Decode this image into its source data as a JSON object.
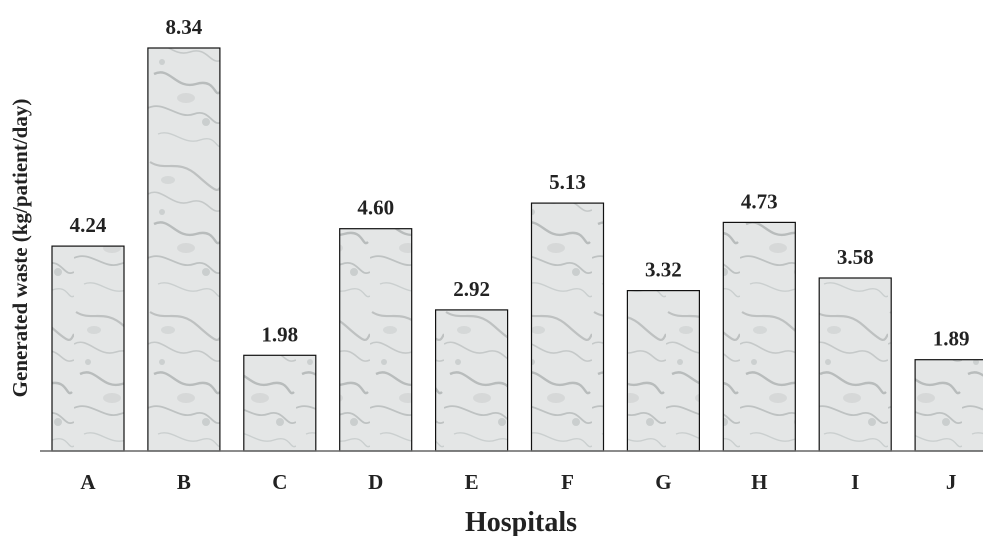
{
  "chart_data": {
    "type": "bar",
    "title": "",
    "xlabel": "Hospitals",
    "ylabel": "Generated waste (kg/patient/day)",
    "categories": [
      "A",
      "B",
      "C",
      "D",
      "E",
      "F",
      "G",
      "H",
      "I",
      "J"
    ],
    "values": [
      4.24,
      8.34,
      1.98,
      4.6,
      2.92,
      5.13,
      3.32,
      4.73,
      3.58,
      1.89
    ],
    "value_labels": [
      "4.24",
      "8.34",
      "1.98",
      "4.60",
      "2.92",
      "5.13",
      "3.32",
      "4.73",
      "3.58",
      "1.89"
    ],
    "ylim": [
      0,
      8.34
    ],
    "grid": false,
    "legend": "none",
    "bar_fill": "marble-texture",
    "colors": {
      "bar_base": "#e4e6e6",
      "bar_vein": "#a9adad",
      "bar_border": "#111111",
      "text": "#222222",
      "axis": "#666666"
    }
  }
}
